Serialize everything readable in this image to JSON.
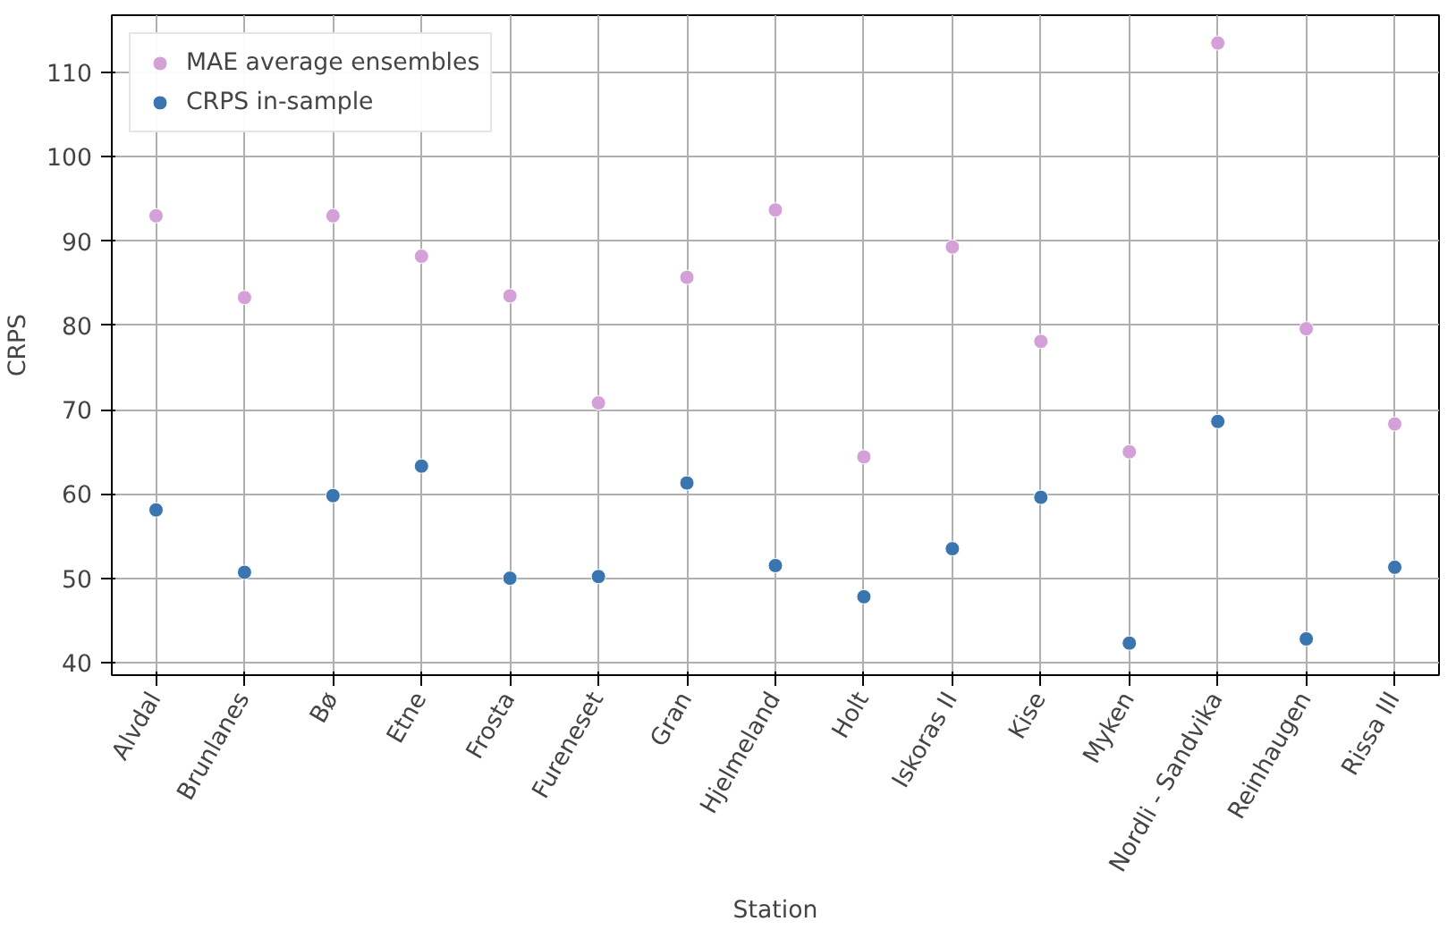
{
  "chart_data": {
    "type": "scatter",
    "xlabel": "Station",
    "ylabel": "CRPS",
    "categories": [
      "Alvdal",
      "Brunlanes",
      "Bø",
      "Etne",
      "Frosta",
      "Fureneset",
      "Gran",
      "Hjelmeland",
      "Holt",
      "Iskoras II",
      "Kise",
      "Myken",
      "Nordli - Sandvika",
      "Reinhaugen",
      "Rissa III"
    ],
    "series": [
      {
        "name": "MAE average ensembles",
        "color": "#d4a0d8",
        "values": [
          93.0,
          83.3,
          93.0,
          88.2,
          83.5,
          70.8,
          85.7,
          93.7,
          64.4,
          89.3,
          78.1,
          65.0,
          113.5,
          79.6,
          68.3
        ]
      },
      {
        "name": "CRPS in-sample",
        "color": "#3a75b0",
        "values": [
          58.1,
          50.7,
          59.8,
          63.3,
          50.0,
          50.2,
          61.3,
          51.5,
          47.8,
          53.5,
          59.6,
          42.3,
          68.6,
          42.8,
          51.3
        ]
      }
    ],
    "ylim": [
      38.5,
      116.8
    ],
    "yticks": [
      40,
      50,
      60,
      70,
      80,
      90,
      100,
      110
    ],
    "grid": true,
    "legend": "top left",
    "marker": "circle"
  }
}
